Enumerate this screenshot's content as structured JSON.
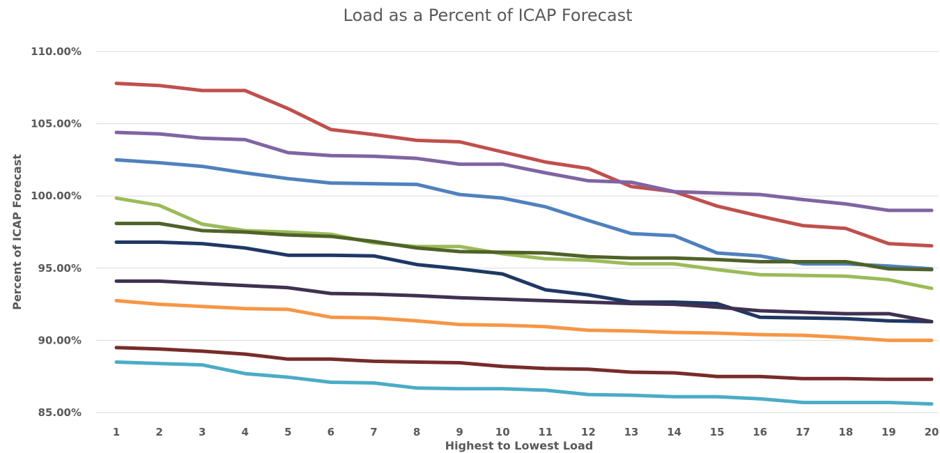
{
  "chart_data": {
    "type": "line",
    "title": "Load as a Percent of ICAP Forecast",
    "xlabel": "Highest to Lowest Load",
    "ylabel": "Percent of ICAP Forecast",
    "x": [
      1,
      2,
      3,
      4,
      5,
      6,
      7,
      8,
      9,
      10,
      11,
      12,
      13,
      14,
      15,
      16,
      17,
      18,
      19,
      20
    ],
    "ylim": [
      85,
      110
    ],
    "yticks": [
      85,
      90,
      95,
      100,
      105,
      110
    ],
    "ytick_labels": [
      "85.00%",
      "90.00%",
      "95.00%",
      "100.00%",
      "105.00%",
      "110.00%"
    ],
    "grid": true,
    "legend": "none",
    "series": [
      {
        "color": "#c0504d",
        "values": [
          107.8,
          107.65,
          107.3,
          107.3,
          106.05,
          104.6,
          104.25,
          103.85,
          103.75,
          103.05,
          102.35,
          101.9,
          100.65,
          100.3,
          99.3,
          98.6,
          97.95,
          97.75,
          96.7,
          96.55
        ]
      },
      {
        "color": "#8064a2",
        "values": [
          104.4,
          104.3,
          104.0,
          103.9,
          103.0,
          102.8,
          102.75,
          102.6,
          102.2,
          102.2,
          101.6,
          101.05,
          100.95,
          100.3,
          100.2,
          100.1,
          99.75,
          99.45,
          99.0,
          99.0
        ]
      },
      {
        "color": "#4f81bd",
        "values": [
          102.5,
          102.3,
          102.05,
          101.6,
          101.2,
          100.9,
          100.85,
          100.8,
          100.1,
          99.85,
          99.25,
          98.3,
          97.4,
          97.25,
          96.05,
          95.85,
          95.3,
          95.3,
          95.15,
          94.95
        ]
      },
      {
        "color": "#9bbb59",
        "values": [
          99.85,
          99.35,
          98.05,
          97.6,
          97.5,
          97.35,
          96.75,
          96.5,
          96.5,
          96.0,
          95.65,
          95.55,
          95.3,
          95.3,
          94.9,
          94.55,
          94.5,
          94.45,
          94.2,
          93.6
        ]
      },
      {
        "color": "#4f6228",
        "values": [
          98.1,
          98.1,
          97.6,
          97.5,
          97.3,
          97.2,
          96.85,
          96.4,
          96.15,
          96.1,
          96.05,
          95.8,
          95.7,
          95.7,
          95.6,
          95.45,
          95.45,
          95.45,
          94.95,
          94.9
        ]
      },
      {
        "color": "#1f3864",
        "values": [
          96.8,
          96.8,
          96.7,
          96.4,
          95.9,
          95.9,
          95.85,
          95.25,
          94.95,
          94.6,
          93.5,
          93.15,
          92.65,
          92.65,
          92.55,
          91.6,
          91.55,
          91.5,
          91.35,
          91.3
        ]
      },
      {
        "color": "#403151",
        "values": [
          94.1,
          94.1,
          93.95,
          93.8,
          93.65,
          93.25,
          93.2,
          93.1,
          92.95,
          92.85,
          92.75,
          92.65,
          92.55,
          92.5,
          92.3,
          92.05,
          91.95,
          91.85,
          91.85,
          91.3
        ]
      },
      {
        "color": "#f79646",
        "values": [
          92.75,
          92.5,
          92.35,
          92.2,
          92.15,
          91.6,
          91.55,
          91.35,
          91.1,
          91.05,
          90.95,
          90.7,
          90.65,
          90.55,
          90.5,
          90.4,
          90.35,
          90.2,
          90.0,
          90.0
        ]
      },
      {
        "color": "#772c2a",
        "values": [
          89.5,
          89.4,
          89.25,
          89.05,
          88.7,
          88.7,
          88.55,
          88.5,
          88.45,
          88.2,
          88.05,
          88.0,
          87.8,
          87.75,
          87.5,
          87.5,
          87.35,
          87.35,
          87.3,
          87.3
        ]
      },
      {
        "color": "#4bacc6",
        "values": [
          88.5,
          88.4,
          88.3,
          87.7,
          87.45,
          87.1,
          87.05,
          86.7,
          86.65,
          86.65,
          86.55,
          86.25,
          86.2,
          86.1,
          86.1,
          85.95,
          85.7,
          85.7,
          85.7,
          85.6
        ]
      }
    ]
  }
}
